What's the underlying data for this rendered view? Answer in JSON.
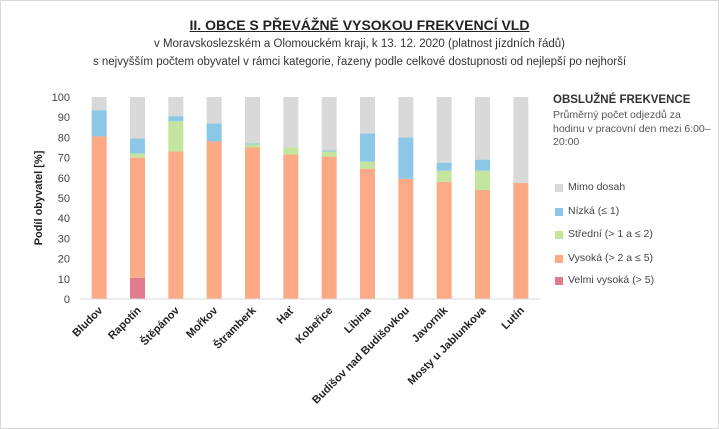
{
  "title": "II. OBCE S PŘEVÁŽNĚ VYSOKOU FREKVENCÍ VLD",
  "subtitle_line1": "v Moravskoslezském a Olomouckém  kraji, k 13. 12. 2020 (platnost jízdních řádů)",
  "subtitle_line2": "s nejvyšším počtem  obyvatel v rámci kategorie, řazeny podle celkové dostupnosti od nejlepší po nejhorší",
  "legend_title": "OBSLUŽNÉ  FREKVENCE",
  "legend_note": "Průměrný počet odjezdů za hodinu  v pracovní den mezi 6:00–20:00",
  "colors": {
    "Mimo dosah": "#d9d9d9",
    "Nízká (≤ 1)": "#8dc7e6",
    "Střední (> 1 a ≤ 2)": "#c4e59d",
    "Vysoká (> 2 a ≤ 5)": "#fbaa85",
    "Velmi vysoká (> 5)": "#e07d8d"
  },
  "chart_data": {
    "type": "bar",
    "stacked": true,
    "ylabel": "Podíl obyvatel [%]",
    "ylim": [
      0,
      100
    ],
    "yticks": [
      0,
      10,
      20,
      30,
      40,
      50,
      60,
      70,
      80,
      90,
      100
    ],
    "grid": false,
    "legend_position": "right",
    "categories": [
      "Bludov",
      "Rapotín",
      "Štěpánov",
      "Mořkov",
      "Štramberk",
      "Hať",
      "Kobeřice",
      "Libina",
      "Budišov nad Budišovkou",
      "Javorník",
      "Mosty u Jablunkova",
      "Lutín"
    ],
    "series": [
      {
        "name": "Velmi vysoká (> 5)",
        "values": [
          0,
          10.5,
          0,
          0,
          0,
          0,
          0,
          0,
          0,
          0,
          0,
          0
        ]
      },
      {
        "name": "Vysoká (> 2 a ≤ 5)",
        "values": [
          80.5,
          59.5,
          73,
          78,
          75,
          71.5,
          70.5,
          64.5,
          59.5,
          58,
          54,
          57.5
        ]
      },
      {
        "name": "Střední (> 1 a ≤ 2)",
        "values": [
          0,
          2,
          15,
          0,
          1.5,
          3.5,
          2.5,
          3.5,
          0,
          5.5,
          9.5,
          0
        ]
      },
      {
        "name": "Nízká (≤ 1)",
        "values": [
          13,
          7.5,
          2.5,
          9,
          0.5,
          0,
          0.5,
          14,
          20.5,
          4,
          5.5,
          0
        ]
      },
      {
        "name": "Mimo dosah",
        "values": [
          6.5,
          20.5,
          9.5,
          13,
          23,
          25,
          26.5,
          18,
          20,
          32.5,
          31,
          42.5
        ]
      }
    ],
    "legend_order": [
      "Mimo dosah",
      "Nízká (≤ 1)",
      "Střední (> 1 a ≤ 2)",
      "Vysoká (> 2 a ≤ 5)",
      "Velmi vysoká (> 5)"
    ]
  }
}
